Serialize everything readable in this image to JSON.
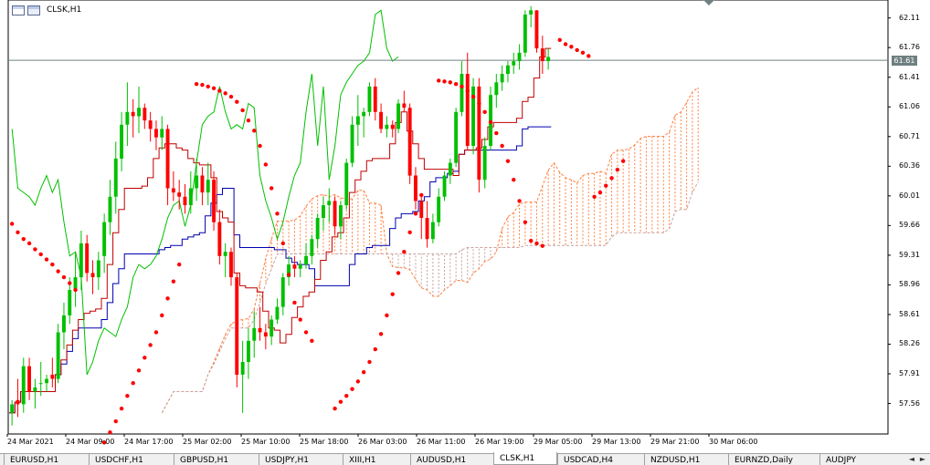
{
  "chart_window": {
    "symbol_timeframe": "CLSK,H1",
    "icons": [
      "chart-window-icon",
      "chart-properties-icon"
    ]
  },
  "colors": {
    "bull": "#00c000",
    "bear": "#ff0000",
    "sar": "#ff0000",
    "tenkan": "#c00000",
    "kijun": "#0000b0",
    "chikou": "#00c000",
    "cloud_a": "#ff8040",
    "cloud_b": "#c8a0a0",
    "current_price_line": "#6f8080"
  },
  "price_axis": [
    "62.11",
    "61.76",
    "61.41",
    "61.06",
    "60.71",
    "60.36",
    "60.01",
    "59.66",
    "59.31",
    "58.96",
    "58.61",
    "58.26",
    "57.91",
    "57.56"
  ],
  "current_price": "61.61",
  "time_axis": [
    "24 Mar 2021",
    "24 Mar 09:00",
    "24 Mar 17:00",
    "25 Mar 02:00",
    "25 Mar 10:00",
    "25 Mar 18:00",
    "26 Mar 03:00",
    "26 Mar 11:00",
    "26 Mar 19:00",
    "29 Mar 05:00",
    "29 Mar 13:00",
    "29 Mar 21:00",
    "30 Mar 06:00"
  ],
  "tabs": [
    "EURUSD,H1",
    "USDCHF,H1",
    "GBPUSD,H1",
    "USDJPY,H1",
    "XIII,H1",
    "AUDUSD,H1",
    "CLSK,H1",
    "USDCAD,H4",
    "NZDUSD,H1",
    "EURNZD,Daily",
    "AUDJPY"
  ],
  "active_tab": "CLSK,H1",
  "chart_data": {
    "type": "candlestick",
    "ylim": [
      57.2,
      62.3
    ],
    "bar_count": 122,
    "candles": [
      [
        57.45,
        57.6,
        57.3,
        57.55
      ],
      [
        57.6,
        57.85,
        57.4,
        57.55
      ],
      [
        57.55,
        58.1,
        57.45,
        58.0
      ],
      [
        58.0,
        58.1,
        57.6,
        57.7
      ],
      [
        57.7,
        57.85,
        57.5,
        57.75
      ],
      [
        57.8,
        58.05,
        57.65,
        57.8
      ],
      [
        57.8,
        57.9,
        57.7,
        57.85
      ],
      [
        57.9,
        58.1,
        57.75,
        57.85
      ],
      [
        57.85,
        58.5,
        57.8,
        58.4
      ],
      [
        58.4,
        58.75,
        58.2,
        58.6
      ],
      [
        58.6,
        59.05,
        58.5,
        58.9
      ],
      [
        58.9,
        59.35,
        58.7,
        59.05
      ],
      [
        59.05,
        59.6,
        58.9,
        59.45
      ],
      [
        59.45,
        59.55,
        59.0,
        59.1
      ],
      [
        59.1,
        59.25,
        58.85,
        59.05
      ],
      [
        59.05,
        59.35,
        58.9,
        59.25
      ],
      [
        59.3,
        59.8,
        59.1,
        59.7
      ],
      [
        59.7,
        60.2,
        59.55,
        60.0
      ],
      [
        60.0,
        60.65,
        59.8,
        60.45
      ],
      [
        60.45,
        61.0,
        60.3,
        60.85
      ],
      [
        60.85,
        61.35,
        60.6,
        61.0
      ],
      [
        61.0,
        61.15,
        60.7,
        60.95
      ],
      [
        60.95,
        61.3,
        60.75,
        61.05
      ],
      [
        61.05,
        61.1,
        60.8,
        60.9
      ],
      [
        60.9,
        61.0,
        60.65,
        60.8
      ],
      [
        60.8,
        60.9,
        60.55,
        60.7
      ],
      [
        60.7,
        60.95,
        60.55,
        60.8
      ],
      [
        60.8,
        60.85,
        59.9,
        60.1
      ],
      [
        60.1,
        60.3,
        59.95,
        60.05
      ],
      [
        60.05,
        60.2,
        59.85,
        60.0
      ],
      [
        60.0,
        60.15,
        59.8,
        59.9
      ],
      [
        59.9,
        60.3,
        59.8,
        60.1
      ],
      [
        60.1,
        60.45,
        59.95,
        60.25
      ],
      [
        60.25,
        60.35,
        59.9,
        60.05
      ],
      [
        60.05,
        60.4,
        59.9,
        60.2
      ],
      [
        60.2,
        60.3,
        59.6,
        59.7
      ],
      [
        59.7,
        59.85,
        59.2,
        59.3
      ],
      [
        59.3,
        59.45,
        59.05,
        59.35
      ],
      [
        59.35,
        59.4,
        58.95,
        59.05
      ],
      [
        59.05,
        59.1,
        57.75,
        57.9
      ],
      [
        57.9,
        58.3,
        57.45,
        58.05
      ],
      [
        58.05,
        58.45,
        57.85,
        58.3
      ],
      [
        58.3,
        58.65,
        58.1,
        58.45
      ],
      [
        58.45,
        58.7,
        58.3,
        58.4
      ],
      [
        58.4,
        58.5,
        58.2,
        58.35
      ],
      [
        58.35,
        58.6,
        58.25,
        58.55
      ],
      [
        58.55,
        58.8,
        58.5,
        58.7
      ],
      [
        58.7,
        59.1,
        58.6,
        59.05
      ],
      [
        59.05,
        59.3,
        58.95,
        59.2
      ],
      [
        59.2,
        59.3,
        59.05,
        59.15
      ],
      [
        59.15,
        59.25,
        59.05,
        59.2
      ],
      [
        59.2,
        59.45,
        59.15,
        59.3
      ],
      [
        59.3,
        59.55,
        59.2,
        59.5
      ],
      [
        59.5,
        59.8,
        59.4,
        59.75
      ],
      [
        59.75,
        60.0,
        59.6,
        59.9
      ],
      [
        59.9,
        60.1,
        59.7,
        59.95
      ],
      [
        59.95,
        60.0,
        59.55,
        59.65
      ],
      [
        59.65,
        59.95,
        59.5,
        59.9
      ],
      [
        59.9,
        60.45,
        59.85,
        60.4
      ],
      [
        60.4,
        60.95,
        60.35,
        60.85
      ],
      [
        60.85,
        61.2,
        60.6,
        60.95
      ],
      [
        60.95,
        61.05,
        60.7,
        61.0
      ],
      [
        61.0,
        61.35,
        60.95,
        61.3
      ],
      [
        61.3,
        61.4,
        60.9,
        61.0
      ],
      [
        61.0,
        61.1,
        60.75,
        60.8
      ],
      [
        60.8,
        60.95,
        60.7,
        60.85
      ],
      [
        60.85,
        60.9,
        60.7,
        60.8
      ],
      [
        60.8,
        61.15,
        60.75,
        61.1
      ],
      [
        61.1,
        61.25,
        61.0,
        61.05
      ],
      [
        61.05,
        61.1,
        60.15,
        60.25
      ],
      [
        60.25,
        60.35,
        59.85,
        59.95
      ],
      [
        59.95,
        60.0,
        59.5,
        59.75
      ],
      [
        59.75,
        59.95,
        59.4,
        59.5
      ],
      [
        59.5,
        59.8,
        59.45,
        59.7
      ],
      [
        59.7,
        60.1,
        59.65,
        60.0
      ],
      [
        60.0,
        60.3,
        59.95,
        60.25
      ],
      [
        60.25,
        60.45,
        60.15,
        60.4
      ],
      [
        60.4,
        61.05,
        60.35,
        61.0
      ],
      [
        61.0,
        61.6,
        60.95,
        61.45
      ],
      [
        61.45,
        61.7,
        60.55,
        60.6
      ],
      [
        60.6,
        61.4,
        60.5,
        61.3
      ],
      [
        61.3,
        61.4,
        60.05,
        60.2
      ],
      [
        60.2,
        60.7,
        60.1,
        60.6
      ],
      [
        60.6,
        61.3,
        60.55,
        61.2
      ],
      [
        61.2,
        61.45,
        61.05,
        61.35
      ],
      [
        61.35,
        61.55,
        61.25,
        61.45
      ],
      [
        61.45,
        61.6,
        61.35,
        61.55
      ],
      [
        61.55,
        61.7,
        61.45,
        61.6
      ],
      [
        61.6,
        61.8,
        61.5,
        61.7
      ],
      [
        61.7,
        62.2,
        61.65,
        62.15
      ],
      [
        62.15,
        62.25,
        62.0,
        62.2
      ],
      [
        62.2,
        62.2,
        61.7,
        61.75
      ],
      [
        61.75,
        61.9,
        61.45,
        61.6
      ],
      [
        61.6,
        61.75,
        61.5,
        61.65
      ]
    ],
    "psar": [
      [
        0,
        59.68
      ],
      [
        1,
        59.58
      ],
      [
        2,
        59.5
      ],
      [
        3,
        59.45
      ],
      [
        4,
        59.38
      ],
      [
        5,
        59.32
      ],
      [
        6,
        59.26
      ],
      [
        7,
        59.2
      ],
      [
        8,
        59.12
      ],
      [
        9,
        59.05
      ],
      [
        10,
        58.98
      ],
      [
        11,
        58.9
      ],
      [
        16,
        57.1
      ],
      [
        17,
        57.22
      ],
      [
        18,
        57.35
      ],
      [
        19,
        57.5
      ],
      [
        20,
        57.65
      ],
      [
        21,
        57.8
      ],
      [
        22,
        57.95
      ],
      [
        23,
        58.1
      ],
      [
        24,
        58.25
      ],
      [
        25,
        58.4
      ],
      [
        26,
        58.6
      ],
      [
        27,
        58.8
      ],
      [
        28,
        59.0
      ],
      [
        29,
        59.2
      ],
      [
        32,
        61.33
      ],
      [
        33,
        61.32
      ],
      [
        34,
        61.3
      ],
      [
        35,
        61.28
      ],
      [
        36,
        61.25
      ],
      [
        37,
        61.22
      ],
      [
        38,
        61.18
      ],
      [
        39,
        61.12
      ],
      [
        40,
        61.02
      ],
      [
        41,
        60.9
      ],
      [
        42,
        60.78
      ],
      [
        43,
        60.6
      ],
      [
        44,
        60.38
      ],
      [
        45,
        60.1
      ],
      [
        46,
        59.8
      ],
      [
        47,
        59.45
      ],
      [
        48,
        59.08
      ],
      [
        49,
        58.75
      ],
      [
        50,
        58.55
      ],
      [
        51,
        58.4
      ],
      [
        52,
        58.3
      ],
      [
        56,
        57.5
      ],
      [
        57,
        57.58
      ],
      [
        58,
        57.65
      ],
      [
        59,
        57.73
      ],
      [
        60,
        57.82
      ],
      [
        61,
        57.93
      ],
      [
        62,
        58.05
      ],
      [
        63,
        58.2
      ],
      [
        64,
        58.38
      ],
      [
        65,
        58.6
      ],
      [
        66,
        58.85
      ],
      [
        67,
        59.1
      ],
      [
        68,
        59.35
      ],
      [
        69,
        59.58
      ],
      [
        70,
        59.8
      ],
      [
        71,
        60.02
      ],
      [
        74,
        61.37
      ],
      [
        75,
        61.36
      ],
      [
        76,
        61.35
      ],
      [
        77,
        61.33
      ],
      [
        78,
        61.3
      ],
      [
        79,
        61.25
      ],
      [
        80,
        61.18
      ],
      [
        81,
        61.1
      ],
      [
        82,
        61.0
      ],
      [
        83,
        60.88
      ],
      [
        84,
        60.75
      ],
      [
        85,
        60.6
      ],
      [
        86,
        60.42
      ],
      [
        87,
        60.2
      ],
      [
        88,
        59.95
      ],
      [
        89,
        59.7
      ],
      [
        90,
        59.48
      ],
      [
        91,
        59.45
      ],
      [
        92,
        59.42
      ],
      [
        95,
        61.85
      ],
      [
        96,
        61.8
      ],
      [
        97,
        61.77
      ],
      [
        98,
        61.73
      ],
      [
        99,
        61.7
      ],
      [
        100,
        61.66
      ],
      [
        101,
        60.0
      ],
      [
        102,
        60.05
      ],
      [
        103,
        60.13
      ],
      [
        104,
        60.22
      ],
      [
        105,
        60.32
      ],
      [
        106,
        60.42
      ]
    ]
  }
}
